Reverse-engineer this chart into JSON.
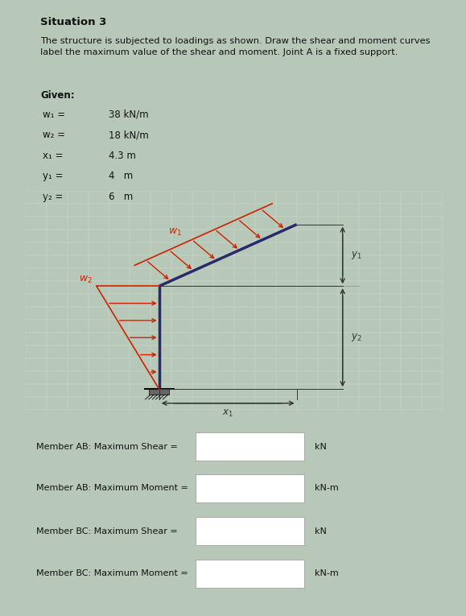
{
  "title": "Situation 3",
  "description": "The structure is subjected to loadings as shown. Draw the shear and moment curves\nlabel the maximum value of the shear and moment. Joint A is a fixed support.",
  "given_label": "Given:",
  "params": [
    {
      "symbol": "w₁ =",
      "value": "38 kN/m"
    },
    {
      "symbol": "w₂ =",
      "value": "18 kN/m"
    },
    {
      "symbol": "x₁ =",
      "value": "4.3 m"
    },
    {
      "symbol": "y₁ =",
      "value": "4   m"
    },
    {
      "symbol": "y₂ =",
      "value": "6   m"
    }
  ],
  "input_labels": [
    {
      "text": "Member AB: Maximum Shear =",
      "unit": "kN"
    },
    {
      "text": "Member AB: Maximum Moment =",
      "unit": "kN-m"
    },
    {
      "text": "Member BC: Maximum Shear =",
      "unit": "kN"
    },
    {
      "text": "Member BC: Maximum Moment =",
      "unit": "kN-m"
    }
  ],
  "top_panel_bg": "#f5f5f5",
  "top_panel_border": "#cccccc",
  "diagram_bg": "#ffffff",
  "diagram_border": "#888888",
  "bottom_panel_bg": "#f5f5f5",
  "bottom_panel_border": "#cccccc",
  "outer_bg": "#b8c8b8",
  "struct_color": "#2a2a6a",
  "load_color": "#cc2200",
  "dim_color": "#333333",
  "text_color": "#111111",
  "grid_color": "#d0ddd0",
  "support_color": "#666666"
}
